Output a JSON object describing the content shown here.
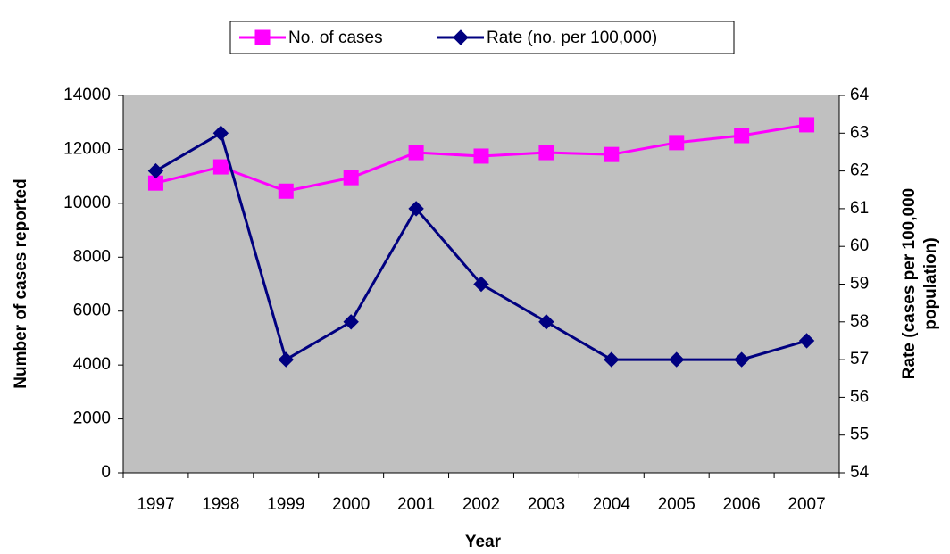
{
  "chart_data": {
    "type": "line",
    "xlabel": "Year",
    "ylabel": "Number of cases reported",
    "y2label": [
      "Rate (cases per 100,000",
      "population)"
    ],
    "categories": [
      "1997",
      "1998",
      "1999",
      "2000",
      "2001",
      "2002",
      "2003",
      "2004",
      "2005",
      "2006",
      "2007"
    ],
    "series": [
      {
        "name": "No. of cases",
        "color": "#ff00ff",
        "marker": "square",
        "values": [
          10750,
          11350,
          10450,
          10950,
          11880,
          11750,
          11880,
          11810,
          12250,
          12510,
          12910
        ]
      },
      {
        "name": "Rate (no. per 100,000)",
        "color": "#000080",
        "marker": "diamond",
        "axis": "y2",
        "values": [
          62,
          63,
          57,
          58,
          61,
          59,
          58,
          57,
          57,
          57,
          57.5
        ]
      }
    ],
    "ylim": [
      0,
      14000
    ],
    "yticks": [
      0,
      2000,
      4000,
      6000,
      8000,
      10000,
      12000,
      14000
    ],
    "y2lim": [
      54,
      64
    ],
    "y2ticks": [
      54,
      55,
      56,
      57,
      58,
      59,
      60,
      61,
      62,
      63,
      64
    ],
    "plot_background": "#c0c0c0",
    "legend": "top"
  }
}
